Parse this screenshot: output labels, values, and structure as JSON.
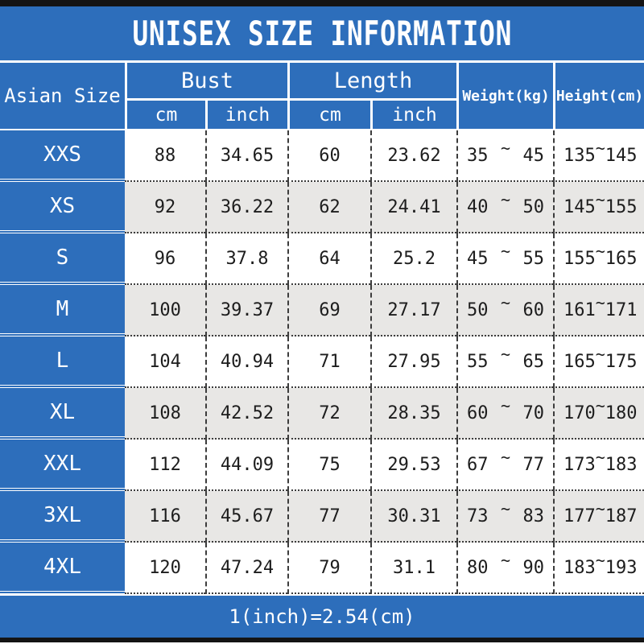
{
  "chart_data": {
    "type": "table",
    "title": "UNISEX SIZE INFORMATION",
    "header": {
      "size_col": "Asian Size",
      "groups": {
        "bust": "Bust",
        "length": "Length"
      },
      "weight": "Weight(kg)",
      "height": "Height(cm)",
      "units": {
        "cm": "cm",
        "inch": "inch"
      }
    },
    "range_separator": "~",
    "rows": [
      {
        "size": "XXS",
        "bust_cm": "88",
        "bust_inch": "34.65",
        "length_cm": "60",
        "length_inch": "23.62",
        "weight_min": "35",
        "weight_max": "45",
        "height_min": "135",
        "height_max": "145"
      },
      {
        "size": "XS",
        "bust_cm": "92",
        "bust_inch": "36.22",
        "length_cm": "62",
        "length_inch": "24.41",
        "weight_min": "40",
        "weight_max": "50",
        "height_min": "145",
        "height_max": "155"
      },
      {
        "size": "S",
        "bust_cm": "96",
        "bust_inch": "37.8",
        "length_cm": "64",
        "length_inch": "25.2",
        "weight_min": "45",
        "weight_max": "55",
        "height_min": "155",
        "height_max": "165"
      },
      {
        "size": "M",
        "bust_cm": "100",
        "bust_inch": "39.37",
        "length_cm": "69",
        "length_inch": "27.17",
        "weight_min": "50",
        "weight_max": "60",
        "height_min": "161",
        "height_max": "171"
      },
      {
        "size": "L",
        "bust_cm": "104",
        "bust_inch": "40.94",
        "length_cm": "71",
        "length_inch": "27.95",
        "weight_min": "55",
        "weight_max": "65",
        "height_min": "165",
        "height_max": "175"
      },
      {
        "size": "XL",
        "bust_cm": "108",
        "bust_inch": "42.52",
        "length_cm": "72",
        "length_inch": "28.35",
        "weight_min": "60",
        "weight_max": "70",
        "height_min": "170",
        "height_max": "180"
      },
      {
        "size": "XXL",
        "bust_cm": "112",
        "bust_inch": "44.09",
        "length_cm": "75",
        "length_inch": "29.53",
        "weight_min": "67",
        "weight_max": "77",
        "height_min": "173",
        "height_max": "183"
      },
      {
        "size": "3XL",
        "bust_cm": "116",
        "bust_inch": "45.67",
        "length_cm": "77",
        "length_inch": "30.31",
        "weight_min": "73",
        "weight_max": "83",
        "height_min": "177",
        "height_max": "187"
      },
      {
        "size": "4XL",
        "bust_cm": "120",
        "bust_inch": "47.24",
        "length_cm": "79",
        "length_inch": "31.1",
        "weight_min": "80",
        "weight_max": "90",
        "height_min": "183",
        "height_max": "193"
      }
    ],
    "note": "1(inch)=2.54(cm)"
  },
  "colors": {
    "header_blue": "#2d6ebb",
    "row_alt_gray": "#e8e7e5",
    "frame_black": "#141414",
    "text_dark": "#1d1d1d",
    "text_white": "#ffffff"
  }
}
